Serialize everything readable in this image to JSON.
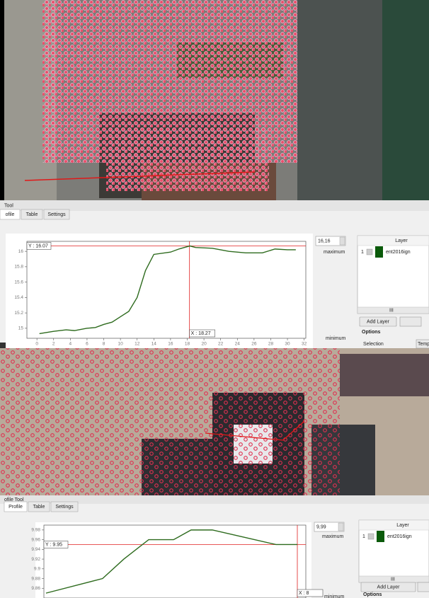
{
  "panels": [
    {
      "title": "Tool",
      "tabs": [
        "ofile",
        "Table",
        "Settings"
      ],
      "plot": {
        "type": "line",
        "xlim": [
          -1.2,
          32.2
        ],
        "ylim": [
          14.87,
          16.13
        ],
        "xticks": [
          0,
          2,
          4,
          6,
          8,
          10,
          12,
          14,
          16,
          18,
          20,
          22,
          24,
          26,
          28,
          30,
          32
        ],
        "yticks": [
          15,
          {
            "value": 15.2,
            "label": "15.2"
          },
          {
            "value": 15.4,
            "label": "15.4"
          },
          {
            "value": 15.6,
            "label": "15.6"
          },
          {
            "value": 15.8,
            "label": "15.8"
          },
          16
        ],
        "x": [
          0.3,
          2,
          3.5,
          4.5,
          6,
          7,
          8,
          9,
          10,
          11,
          12,
          13,
          14,
          16,
          17,
          18.3,
          19,
          21,
          23,
          25,
          27,
          28.5,
          30,
          31
        ],
        "values": [
          14.93,
          14.96,
          14.98,
          14.97,
          15.0,
          15.01,
          15.05,
          15.08,
          15.15,
          15.22,
          15.4,
          15.75,
          15.96,
          15.99,
          16.03,
          16.07,
          16.05,
          16.04,
          16.0,
          15.98,
          15.98,
          16.03,
          16.02,
          16.02
        ],
        "color": "#2e6b1e",
        "crosshair": {
          "x": 18.27,
          "y": 16.07,
          "x_label": "X : 18.27",
          "y_label": "Y : 16.07"
        }
      },
      "spin": "16,16",
      "max_label": "maximum",
      "min_label": "minimum",
      "layer_header": "Layer",
      "layer_index": "1",
      "layer_name": "ent2016ign",
      "scroll": "III",
      "add_layer": "Add Layer",
      "options": "Options",
      "selection": "Selection",
      "temp": "Temp"
    },
    {
      "title": "ofile Tool",
      "tabs": [
        "Profile",
        "Table",
        "Settings"
      ],
      "plot": {
        "type": "line",
        "xlim": [
          0,
          10
        ],
        "ylim": [
          9.84,
          9.99
        ],
        "yticks": [
          {
            "value": 9.86,
            "label": "9.86"
          },
          {
            "value": 9.88,
            "label": "9.88"
          },
          {
            "value": 9.9,
            "label": "9.9"
          },
          {
            "value": 9.92,
            "label": "9.92"
          },
          {
            "value": 9.94,
            "label": "9.94"
          },
          {
            "value": 9.96,
            "label": "9.96"
          },
          {
            "value": 9.98,
            "label": "9.98"
          }
        ],
        "x": [
          0.08,
          2.24,
          3.05,
          4.0,
          4.95,
          5.62,
          6.43,
          8.86,
          9.68
        ],
        "values": [
          9.85,
          9.88,
          9.92,
          9.96,
          9.96,
          9.98,
          9.98,
          9.95,
          9.95
        ],
        "color": "#2e6b1e",
        "crosshair": {
          "y": 9.95,
          "x_label": "X : 8",
          "y_label": "Y : 9.95"
        }
      },
      "spin": "9,99",
      "max_label": "maximum",
      "min_label": "minimum",
      "layer_header": "Layer",
      "layer_index": "1",
      "layer_name": "ent2016ign",
      "scroll": "III",
      "add_layer": "Add Layer",
      "options": "Options"
    }
  ]
}
